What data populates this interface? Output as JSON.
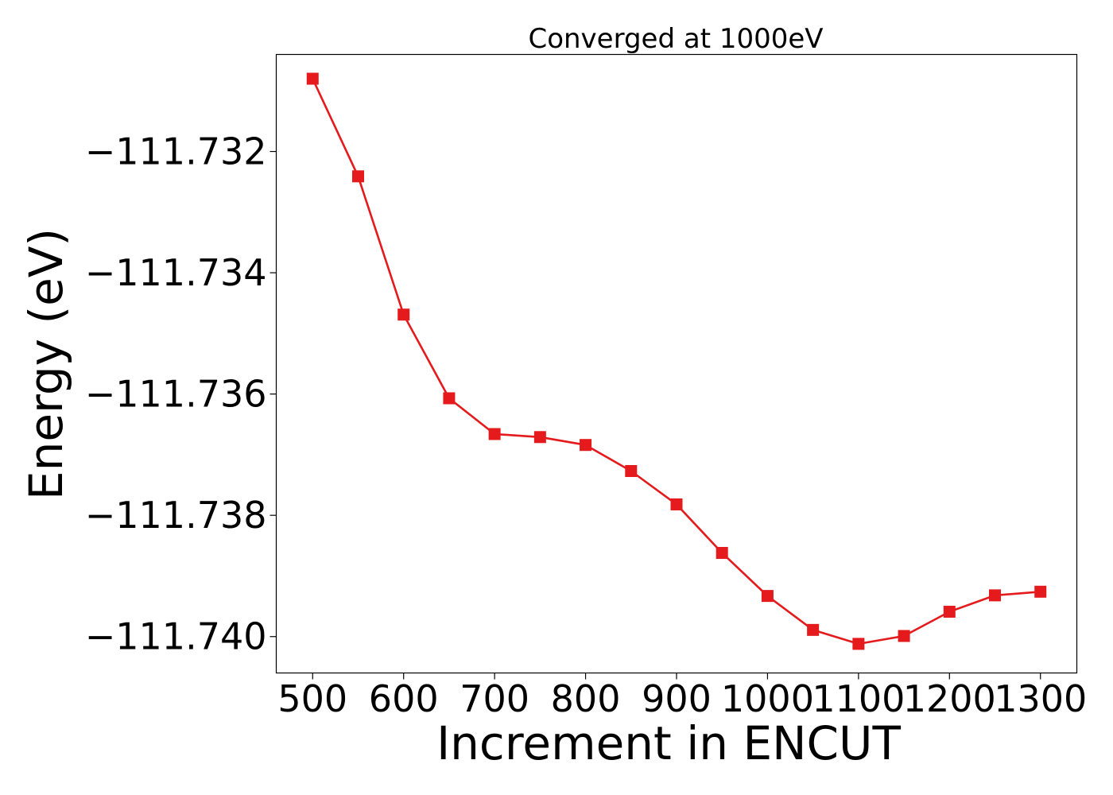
{
  "chart_data": {
    "type": "line",
    "title": "Converged at 1000eV",
    "xlabel": "Increment in ENCUT",
    "ylabel": "Energy (eV)",
    "xlim": [
      460,
      1340
    ],
    "ylim": [
      -111.7406,
      -111.7304
    ],
    "x_ticks": [
      500,
      600,
      700,
      800,
      900,
      1000,
      1100,
      1200,
      1300
    ],
    "x_tick_labels": [
      "500",
      "600",
      "700",
      "800",
      "900",
      "1000",
      "1100",
      "1200",
      "1300"
    ],
    "y_ticks": [
      -111.732,
      -111.734,
      -111.736,
      -111.738,
      -111.74
    ],
    "y_tick_labels": [
      "−111.732",
      "−111.734",
      "−111.736",
      "−111.738",
      "−111.740"
    ],
    "grid": false,
    "legend": "none",
    "series": [
      {
        "color": "#e41a1c",
        "marker": "square",
        "x": [
          500,
          550,
          600,
          650,
          700,
          750,
          800,
          850,
          900,
          950,
          1000,
          1050,
          1100,
          1150,
          1200,
          1250,
          1300
        ],
        "y": [
          -111.7308,
          -111.73241,
          -111.73469,
          -111.73607,
          -111.73666,
          -111.73671,
          -111.73684,
          -111.73727,
          -111.73782,
          -111.73862,
          -111.73933,
          -111.73989,
          -111.74012,
          -111.73999,
          -111.73959,
          -111.73932,
          -111.73926
        ]
      }
    ]
  }
}
